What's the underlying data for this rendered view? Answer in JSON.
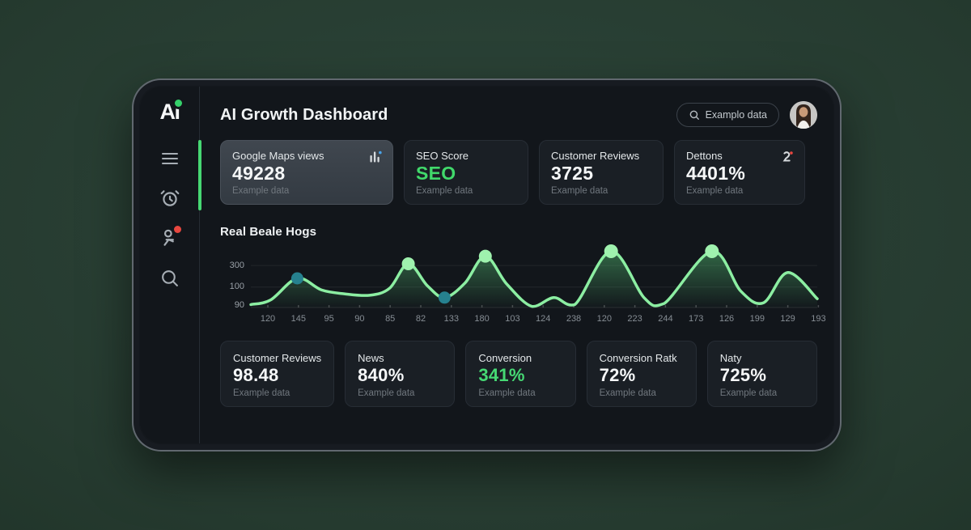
{
  "sidebar": {
    "logo": "Ai",
    "items": [
      {
        "name": "menu"
      },
      {
        "name": "alarm"
      },
      {
        "name": "people",
        "badge": true
      },
      {
        "name": "search"
      }
    ]
  },
  "header": {
    "title": "AI Growth Dashboard",
    "search_label": "Examplo data"
  },
  "stats_top": [
    {
      "title": "Google Maps views",
      "value": "49228",
      "sub": "Example data",
      "highlighted": true,
      "icon": "trend-chart",
      "value_color": "#f5f7f8"
    },
    {
      "title": "SEO Score",
      "value": "SEO",
      "sub": "Example data",
      "highlighted": false,
      "value_color": "#41d96b"
    },
    {
      "title": "Customer Reviews",
      "value": "3725",
      "sub": "Example data",
      "highlighted": false,
      "value_color": "#f5f7f8"
    },
    {
      "title": "Dettons",
      "value": "4401%",
      "sub": "Example data",
      "highlighted": false,
      "icon": "person-add",
      "value_color": "#f5f7f8"
    }
  ],
  "chart_data": {
    "type": "area",
    "title": "Real Beale Hogs",
    "legend": "none",
    "grid": "horizontal",
    "y_ticks": [
      {
        "label": "300",
        "v": 0.72,
        "line": true
      },
      {
        "label": "100",
        "v": 0.35,
        "line": true
      },
      {
        "label": "90",
        "v": 0.03,
        "line": false
      }
    ],
    "x_ticks": [
      "120",
      "145",
      "95",
      "90",
      "85",
      "82",
      "133",
      "180",
      "103",
      "124",
      "238",
      "120",
      "223",
      "244",
      "173",
      "126",
      "199",
      "129",
      "193"
    ],
    "points": [
      [
        0.0,
        0.05
      ],
      [
        0.035,
        0.13
      ],
      [
        0.082,
        0.5
      ],
      [
        0.125,
        0.3
      ],
      [
        0.165,
        0.235
      ],
      [
        0.21,
        0.21
      ],
      [
        0.245,
        0.33
      ],
      [
        0.278,
        0.75
      ],
      [
        0.312,
        0.37
      ],
      [
        0.342,
        0.17
      ],
      [
        0.378,
        0.42
      ],
      [
        0.414,
        0.88
      ],
      [
        0.452,
        0.4
      ],
      [
        0.496,
        0.02
      ],
      [
        0.535,
        0.17
      ],
      [
        0.572,
        0.05
      ],
      [
        0.636,
        0.965
      ],
      [
        0.695,
        0.16
      ],
      [
        0.73,
        0.07
      ],
      [
        0.814,
        0.965
      ],
      [
        0.865,
        0.28
      ],
      [
        0.905,
        0.08
      ],
      [
        0.948,
        0.6
      ],
      [
        1.0,
        0.15
      ]
    ],
    "markers": [
      {
        "p": 2,
        "color": "#26818f",
        "r": 7.5
      },
      {
        "p": 7,
        "color": "#9ff2ae",
        "r": 8
      },
      {
        "p": 9,
        "color": "#26818f",
        "r": 7.5
      },
      {
        "p": 11,
        "color": "#9ff2ae",
        "r": 8
      },
      {
        "p": 16,
        "color": "#9ff2ae",
        "r": 8.5
      },
      {
        "p": 19,
        "color": "#9ff2ae",
        "r": 8.5
      }
    ],
    "colors": {
      "line": "#8ceea2",
      "fill": "#57c878",
      "grid": "rgba(255,255,255,0.07)",
      "baseline": "rgba(255,255,255,0.10)",
      "tick": "rgba(255,255,255,0.22)"
    }
  },
  "stats_bottom": [
    {
      "title": "Customer Reviews",
      "value": "98.48",
      "sub": "Example data",
      "value_color": "#f5f7f8"
    },
    {
      "title": "News",
      "value": "840%",
      "sub": "Example data",
      "value_color": "#f5f7f8"
    },
    {
      "title": "Conversion",
      "value": "341%",
      "sub": "Example data",
      "value_color": "#46d974"
    },
    {
      "title": "Conversion Ratk",
      "value": "72%",
      "sub": "Example data",
      "value_color": "#f5f7f8"
    },
    {
      "title": "Naty",
      "value": "725%",
      "sub": "Example data",
      "value_color": "#f5f7f8"
    }
  ]
}
